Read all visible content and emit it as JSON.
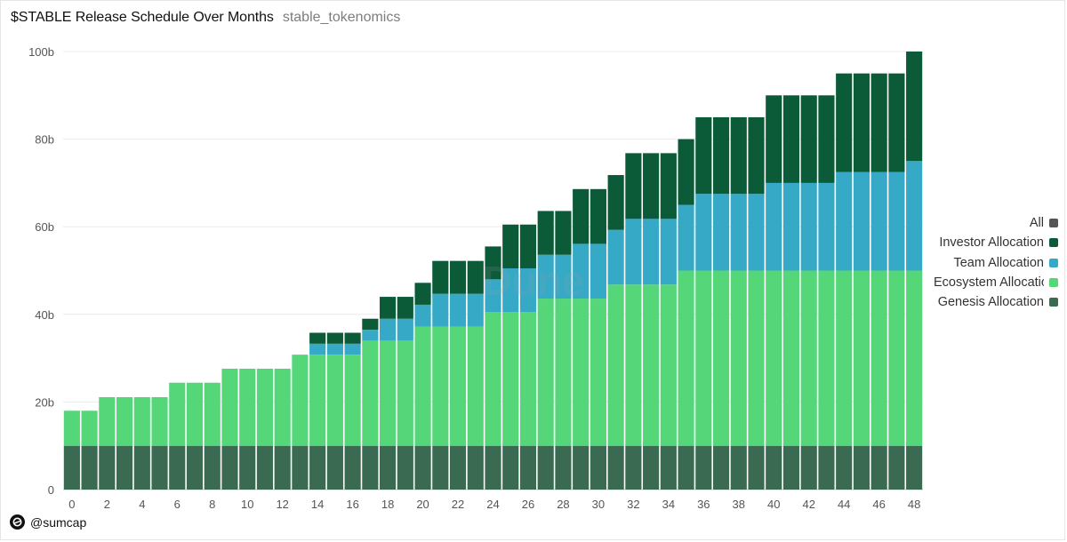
{
  "header": {
    "title": "$STABLE Release Schedule Over Months",
    "subtitle": "stable_tokenomics"
  },
  "watermark": "Dune",
  "footer": {
    "handle": "@sumcap",
    "icon": "dune-logo-icon"
  },
  "legend": [
    {
      "label": "All",
      "color": "#555555"
    },
    {
      "label": "Investor Allocation",
      "color": "#0b5a38"
    },
    {
      "label": "Team Allocation",
      "color": "#36a9c6"
    },
    {
      "label": "Ecosystem Allocation",
      "color": "#55d679"
    },
    {
      "label": "Genesis Allocation",
      "color": "#3a6a52"
    }
  ],
  "chart_data": {
    "type": "bar",
    "stacked": true,
    "title": "$STABLE Release Schedule Over Months",
    "xlabel": "",
    "ylabel": "",
    "ylim": [
      0,
      100
    ],
    "y_unit": "b",
    "yticks": [
      0,
      20,
      40,
      60,
      80,
      100
    ],
    "ytick_labels": [
      "0",
      "20b",
      "40b",
      "60b",
      "80b",
      "100b"
    ],
    "xtick_labels": [
      "0",
      "2",
      "4",
      "6",
      "8",
      "10",
      "12",
      "14",
      "16",
      "18",
      "20",
      "22",
      "24",
      "26",
      "28",
      "30",
      "32",
      "34",
      "36",
      "38",
      "40",
      "42",
      "44",
      "46",
      "48"
    ],
    "categories": [
      0,
      1,
      2,
      3,
      4,
      5,
      6,
      7,
      8,
      9,
      10,
      11,
      12,
      13,
      14,
      15,
      16,
      17,
      18,
      19,
      20,
      21,
      22,
      23,
      24,
      25,
      26,
      27,
      28,
      29,
      30,
      31,
      32,
      33,
      34,
      35,
      36,
      37,
      38,
      39,
      40,
      41,
      42,
      43,
      44,
      45,
      46,
      47,
      48
    ],
    "series": [
      {
        "name": "Genesis Allocation",
        "color": "#3a6a52",
        "values": [
          10,
          10,
          10,
          10,
          10,
          10,
          10,
          10,
          10,
          10,
          10,
          10,
          10,
          10,
          10,
          10,
          10,
          10,
          10,
          10,
          10,
          10,
          10,
          10,
          10,
          10,
          10,
          10,
          10,
          10,
          10,
          10,
          10,
          10,
          10,
          10,
          10,
          10,
          10,
          10,
          10,
          10,
          10,
          10,
          10,
          10,
          10,
          10,
          10
        ]
      },
      {
        "name": "Ecosystem Allocation",
        "color": "#55d679",
        "values": [
          8,
          8,
          11.1,
          11.1,
          11.1,
          11.1,
          14.4,
          14.4,
          14.4,
          17.6,
          17.6,
          17.6,
          17.6,
          20.8,
          20.8,
          20.8,
          20.8,
          24,
          24,
          24,
          27.2,
          27.2,
          27.2,
          27.2,
          30.5,
          30.5,
          30.5,
          33.6,
          33.6,
          33.6,
          33.6,
          36.8,
          36.8,
          36.8,
          36.8,
          40,
          40,
          40,
          40,
          40,
          40,
          40,
          40,
          40,
          40,
          40,
          40,
          40,
          40
        ]
      },
      {
        "name": "Team Allocation",
        "color": "#36a9c6",
        "values": [
          0,
          0,
          0,
          0,
          0,
          0,
          0,
          0,
          0,
          0,
          0,
          0,
          0,
          0,
          2.5,
          2.5,
          2.5,
          2.5,
          5,
          5,
          5,
          7.5,
          7.5,
          7.5,
          7.5,
          10,
          10,
          10,
          10,
          12.5,
          12.5,
          12.5,
          15,
          15,
          15,
          15,
          17.5,
          17.5,
          17.5,
          17.5,
          20,
          20,
          20,
          20,
          22.5,
          22.5,
          22.5,
          22.5,
          25
        ]
      },
      {
        "name": "Investor Allocation",
        "color": "#0b5a38",
        "values": [
          0,
          0,
          0,
          0,
          0,
          0,
          0,
          0,
          0,
          0,
          0,
          0,
          0,
          0,
          2.5,
          2.5,
          2.5,
          2.5,
          5,
          5,
          5,
          7.5,
          7.5,
          7.5,
          7.5,
          10,
          10,
          10,
          10,
          12.5,
          12.5,
          12.5,
          15,
          15,
          15,
          15,
          17.5,
          17.5,
          17.5,
          17.5,
          20,
          20,
          20,
          20,
          22.5,
          22.5,
          22.5,
          22.5,
          25
        ]
      }
    ]
  }
}
